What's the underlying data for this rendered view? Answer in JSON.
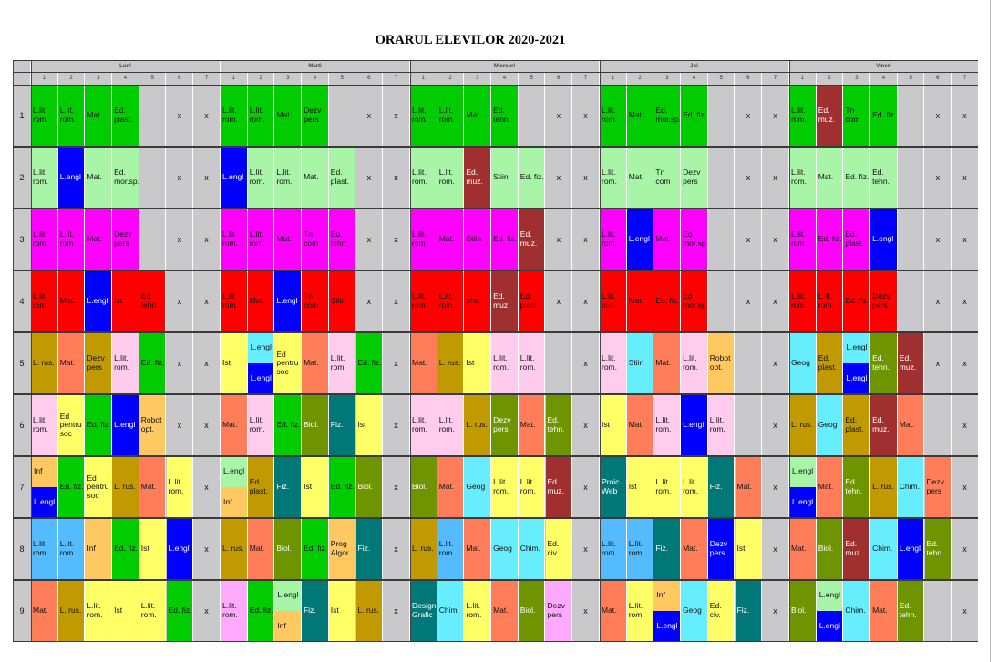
{
  "title": "ORARUL ELEVILOR 2020-2021",
  "days": [
    "Luni",
    "Marti",
    "Miercuri",
    "Joi",
    "Vineri"
  ],
  "slot_numbers": [
    "1",
    "2",
    "3",
    "4",
    "5",
    "6",
    "7"
  ],
  "row_numbers": [
    "1",
    "2",
    "3",
    "4",
    "5",
    "6",
    "7",
    "8",
    "9"
  ],
  "colors": {
    "green": "#00cc00",
    "lgreen": "#a8f5a8",
    "magenta": "#ff00ff",
    "red": "#ff0000",
    "blue": "#0000ff",
    "maroon": "#a03030",
    "gold": "#c09a00",
    "salmon": "#ff7e59",
    "yellow": "#ffff66",
    "pink": "#ffccee",
    "olive": "#6e9400",
    "teal": "#007878",
    "cyan": "#66eeff",
    "lblue": "#55bbff",
    "orange": "#ffc860",
    "violet": "#ffaaff",
    "empty": "#c9c9cb"
  },
  "grid": [
    [
      [
        "L.lit. rom.|green",
        "L.lit. rom.|green",
        "Mat.|green",
        "Ed. plast.|green",
        "|empty",
        "x|empty",
        "x|empty"
      ],
      [
        "L.lit. rom.|green",
        "L.lit. rom.|green",
        "Mat.|green",
        "Dezv pers|green",
        "|empty",
        "x|empty",
        "x|empty"
      ],
      [
        "L.lit. rom.|green",
        "L.lit. rom.|green",
        "Mat.|green",
        "Ed. tehn.|green",
        "|empty",
        "x|empty",
        "x|empty"
      ],
      [
        "L.lit. rom.|green",
        "Mat.|green",
        "Ed. mor.sp.|green",
        "Ed. fiz.|green",
        "|empty",
        "x|empty",
        "x|empty"
      ],
      [
        "L.lit. rom.|green",
        "Ed. muz.|maroon",
        "Tn com|green",
        "Ed. fiz.|green",
        "|empty",
        "x|empty",
        "x|empty"
      ]
    ],
    [
      [
        "L.lit. rom.|lgreen",
        "L.engl|blue",
        "Mat.|lgreen",
        "Ed. mor.sp.|lgreen",
        "|empty",
        "x|empty",
        "x|empty"
      ],
      [
        "L.engl|blue",
        "L.lit. rom.|lgreen",
        "L.lit. rom.|lgreen",
        "Mat.|lgreen",
        "Ed. plast.|lgreen",
        "x|empty",
        "x|empty"
      ],
      [
        "L.lit. rom.|lgreen",
        "L.lit. rom.|lgreen",
        "Ed. muz.|maroon",
        "Stiin|lgreen",
        "Ed. fiz.|lgreen",
        "x|empty",
        "x|empty"
      ],
      [
        "L.lit. rom.|lgreen",
        "Mat.|lgreen",
        "Tn com|lgreen",
        "Dezv pers|lgreen",
        "|empty",
        "x|empty",
        "x|empty"
      ],
      [
        "L.lit. rom.|lgreen",
        "Mat.|lgreen",
        "Ed. fiz.|lgreen",
        "Ed. tehn.|lgreen",
        "|empty",
        "x|empty",
        "x|empty"
      ]
    ],
    [
      [
        "L.lit. rom.|magenta",
        "L.lit. rom.|magenta",
        "Mat.|magenta",
        "Dezv pers|magenta",
        "|empty",
        "x|empty",
        "x|empty"
      ],
      [
        "L.lit. rom.|magenta",
        "L.lit. rom.|magenta",
        "Mat.|magenta",
        "Tn com|magenta",
        "Ed. tehn.|magenta",
        "x|empty",
        "x|empty"
      ],
      [
        "L.lit. rom.|magenta",
        "Mat.|magenta",
        "Stiin|magenta",
        "Ed. fiz.|magenta",
        "Ed. muz.|maroon",
        "x|empty",
        "x|empty"
      ],
      [
        "L.lit. rom.|magenta",
        "L.engl|blue",
        "Mat.|magenta",
        "Ed. mor.sp.|magenta",
        "|empty",
        "x|empty",
        "x|empty"
      ],
      [
        "L.lit. rom.|magenta",
        "Ed. fiz.|magenta",
        "Ed. plast.|magenta",
        "L.engl|blue",
        "|empty",
        "x|empty",
        "x|empty"
      ]
    ],
    [
      [
        "L.lit. rom.|red",
        "Mat.|red",
        "L.engl|blue",
        "Ist|red",
        "Ed. tehn.|red",
        "x|empty",
        "x|empty"
      ],
      [
        "L.lit. rom.|red",
        "Mat.|red",
        "L.engl|blue",
        "Tn com|red",
        "Stiin|red",
        "x|empty",
        "x|empty"
      ],
      [
        "L.lit. rom.|red",
        "L.lit. rom.|red",
        "Mat.|red",
        "Ed. muz.|maroon",
        "Ed. plast.|red",
        "x|empty",
        "x|empty"
      ],
      [
        "L.lit. rom.|red",
        "Mat.|red",
        "Ed. fiz.|red",
        "Ed. mor.sp.|red",
        "|empty",
        "x|empty",
        "x|empty"
      ],
      [
        "L.lit. rom.|red",
        "L.lit. rom.|red",
        "Ed. fiz.|red",
        "Dezv pers|red",
        "|empty",
        "x|empty",
        "x|empty"
      ]
    ],
    [
      [
        "L. rus.|gold",
        "Mat.|salmon",
        "Dezv pers|gold",
        "L.lit. rom.|pink",
        "Ed. fiz.|green",
        "x|empty",
        "x|empty"
      ],
      [
        "Ist|yellow",
        "L.engl/L.engl|cyan/blue",
        "Ed pentru soc|yellow",
        "Mat.|salmon",
        "L.lit. rom.|pink",
        "Ed. fiz.|green",
        "x|empty"
      ],
      [
        "Mat.|salmon",
        "L. rus.|gold",
        "Ist|yellow",
        "L.lit. rom.|pink",
        "L.lit. rom.|pink",
        "|empty",
        "x|empty"
      ],
      [
        "L.lit. rom.|pink",
        "Stiin|cyan",
        "Mat.|salmon",
        "L.lit. rom.|pink",
        "Robot opt.|orange",
        "|empty",
        "x|empty"
      ],
      [
        "Geog|cyan",
        "Ed. plast.|gold",
        "L.engl/L.engl|cyan/blue",
        "Ed. tehn.|olive",
        "Ed. muz.|maroon",
        "x|empty",
        "x|empty"
      ]
    ],
    [
      [
        "L.lit. rom.|pink",
        "Ed pentru soc|yellow",
        "Ed. fiz.|green",
        "L.engl|blue",
        "Robot opt.|orange",
        "x|empty",
        "x|empty"
      ],
      [
        "Mat.|salmon",
        "L.lit. rom.|pink",
        "Ed. fiz.|green",
        "Biol.|olive",
        "Fiz.|teal",
        "Ist|yellow",
        "x|empty"
      ],
      [
        "L.lit. rom.|pink",
        "L.lit. rom.|pink",
        "L. rus.|gold",
        "Dezv pers|olive",
        "Mat.|salmon",
        "Ed. tehn.|olive",
        "x|empty"
      ],
      [
        "Ist|yellow",
        "Mat.|salmon",
        "L.lit. rom.|pink",
        "L.engl|blue",
        "L.lit. rom.|pink",
        "|empty",
        "x|empty"
      ],
      [
        "L. rus.|gold",
        "Geog|cyan",
        "Ed. plast.|gold",
        "Ed. muz.|maroon",
        "Mat.|salmon",
        "|empty",
        "x|empty"
      ]
    ],
    [
      [
        "Inf/L.engl|orange/blue",
        "Ed. fiz.|green",
        "Ed pentru soc|yellow",
        "L. rus.|gold",
        "Mat.|salmon",
        "L.lit. rom.|yellow",
        "x|empty"
      ],
      [
        "L.engl/Inf|lgreen/orange",
        "Ed. plast.|gold",
        "Fiz.|teal",
        "Ist|yellow",
        "Ed. fiz.|green",
        "Biol.|olive",
        "x|empty"
      ],
      [
        "Biol.|olive",
        "Mat.|salmon",
        "Geog|cyan",
        "L.lit. rom.|yellow",
        "L.lit. rom.|yellow",
        "Ed. muz.|maroon",
        "x|empty"
      ],
      [
        "Proic Web|teal",
        "Ist|yellow",
        "L.lit. rom.|yellow",
        "L.lit. rom.|yellow",
        "Fiz.|teal",
        "Mat.|salmon",
        "x|empty"
      ],
      [
        "L.engl/L.engl|lgreen/blue",
        "Mat.|salmon",
        "Ed. tehn.|olive",
        "L. rus.|gold",
        "Chim.|cyan",
        "Dezv pers|salmon",
        "x|empty"
      ]
    ],
    [
      [
        "L.lit. rom.|lblue",
        "L.lit. rom.|lblue",
        "Inf|orange",
        "Ed. fiz.|green",
        "Ist|yellow",
        "L.engl|blue",
        "x|empty"
      ],
      [
        "L. rus.|gold",
        "Mat.|salmon",
        "Biol.|olive",
        "Ed. fiz.|green",
        "Prog Algor|orange",
        "Fiz.|teal",
        "x|empty"
      ],
      [
        "L. rus.|gold",
        "L.lit. rom.|lblue",
        "Mat.|salmon",
        "Geog|cyan",
        "Chim.|cyan",
        "Ed. civ.|yellow",
        "x|empty"
      ],
      [
        "L.lit. rom.|lblue",
        "L.lit. rom.|lblue",
        "Fiz.|teal",
        "Mat.|salmon",
        "Dezv pers|blue",
        "Ist|yellow",
        "x|empty"
      ],
      [
        "Mat.|salmon",
        "Biol.|olive",
        "Ed. muz.|maroon",
        "Chim.|cyan",
        "L.engl|blue",
        "Ed. tehn.|olive",
        "x|empty"
      ]
    ],
    [
      [
        "Mat.|salmon",
        "L. rus.|gold",
        "L.lit. rom.|yellow",
        "Ist|yellow",
        "L.lit. rom.|yellow",
        "Ed. fiz.|green",
        "x|empty"
      ],
      [
        "L.lit. rom.|violet",
        "Ed. fiz.|green",
        "L.engl/Inf|lgreen/orange",
        "Fiz.|teal",
        "Ist|yellow",
        "L. rus.|gold",
        "x|empty"
      ],
      [
        "Design Grafic|teal",
        "Chim.|cyan",
        "L.lit. rom.|yellow",
        "Mat.|salmon",
        "Biol.|olive",
        "Dezv pers|violet",
        "x|empty"
      ],
      [
        "Mat.|salmon",
        "L.lit. rom.|yellow",
        "Inf/L.engl|orange/blue",
        "Geog|cyan",
        "Ed. civ.|yellow",
        "Fiz.|teal",
        "x|empty"
      ],
      [
        "Biol.|olive",
        "L.engl/L.engl|lgreen/blue",
        "Chim.|cyan",
        "Mat.|salmon",
        "Ed. tehn.|olive",
        "|empty",
        "x|empty"
      ]
    ]
  ]
}
